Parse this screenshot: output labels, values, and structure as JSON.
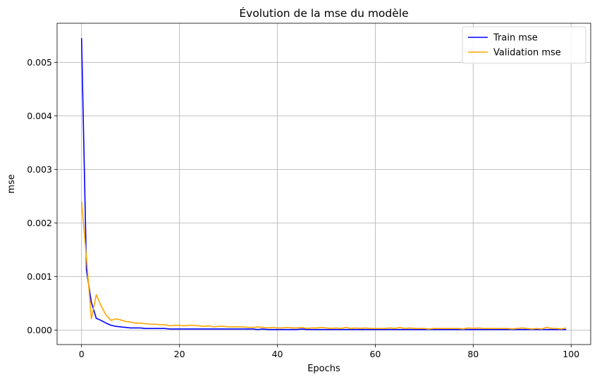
{
  "chart_data": {
    "type": "line",
    "title": "Évolution de la mse du modèle",
    "xlabel": "Epochs",
    "ylabel": "mse",
    "xlim": [
      -5,
      104
    ],
    "ylim": [
      -0.00027,
      0.00573
    ],
    "xticks": [
      0,
      20,
      40,
      60,
      80,
      100
    ],
    "yticks": [
      0.0,
      0.001,
      0.002,
      0.003,
      0.004,
      0.005
    ],
    "ytick_labels": [
      "0.000",
      "0.001",
      "0.002",
      "0.003",
      "0.004",
      "0.005"
    ],
    "xtick_labels": [
      "0",
      "20",
      "40",
      "60",
      "80",
      "100"
    ],
    "grid": true,
    "legend_position": "top-right",
    "series": [
      {
        "name": "Train mse",
        "color": "#0000ff",
        "x": [
          0,
          1,
          2,
          3,
          4,
          5,
          6,
          7,
          8,
          9,
          10,
          11,
          12,
          13,
          14,
          15,
          16,
          17,
          18,
          19,
          20,
          21,
          22,
          23,
          24,
          25,
          26,
          27,
          28,
          29,
          30,
          31,
          32,
          33,
          34,
          35,
          36,
          37,
          38,
          39,
          40,
          41,
          42,
          43,
          44,
          45,
          46,
          47,
          48,
          49,
          50,
          51,
          52,
          53,
          54,
          55,
          56,
          57,
          58,
          59,
          60,
          61,
          62,
          63,
          64,
          65,
          66,
          67,
          68,
          69,
          70,
          71,
          72,
          73,
          74,
          75,
          76,
          77,
          78,
          79,
          80,
          81,
          82,
          83,
          84,
          85,
          86,
          87,
          88,
          89,
          90,
          91,
          92,
          93,
          94,
          95,
          96,
          97,
          98,
          99
        ],
        "values": [
          0.00545,
          0.00112,
          0.00052,
          0.00022,
          0.00018,
          0.00013,
          9e-05,
          7e-05,
          6e-05,
          5e-05,
          4e-05,
          4e-05,
          4e-05,
          3e-05,
          3e-05,
          3e-05,
          3e-05,
          3e-05,
          2e-05,
          2e-05,
          2e-05,
          2e-05,
          2e-05,
          2e-05,
          2e-05,
          2e-05,
          2e-05,
          2e-05,
          2e-05,
          2e-05,
          2e-05,
          2e-05,
          2e-05,
          2e-05,
          2e-05,
          2e-05,
          1e-05,
          2e-05,
          1e-05,
          1e-05,
          1e-05,
          1e-05,
          1e-05,
          1e-05,
          1e-05,
          2e-05,
          1e-05,
          1e-05,
          1e-05,
          1e-05,
          1e-05,
          1e-05,
          1e-05,
          1e-05,
          1e-05,
          1e-05,
          1e-05,
          1e-05,
          1e-05,
          1e-05,
          1e-05,
          1e-05,
          1e-05,
          1e-05,
          1e-05,
          1e-05,
          1e-05,
          1e-05,
          1e-05,
          1e-05,
          1e-05,
          1e-05,
          1e-05,
          1e-05,
          1e-05,
          1e-05,
          1e-05,
          1e-05,
          1e-05,
          1e-05,
          1e-05,
          1e-05,
          1e-05,
          1e-05,
          1e-05,
          1e-05,
          1e-05,
          1e-05,
          1e-05,
          1e-05,
          1e-05,
          1e-05,
          1e-05,
          1e-05,
          1e-05,
          1e-05,
          1e-05,
          1e-05,
          1e-05,
          1e-05
        ]
      },
      {
        "name": "Validation mse",
        "color": "#ffa500",
        "x": [
          0,
          1,
          2,
          3,
          4,
          5,
          6,
          7,
          8,
          9,
          10,
          11,
          12,
          13,
          14,
          15,
          16,
          17,
          18,
          19,
          20,
          21,
          22,
          23,
          24,
          25,
          26,
          27,
          28,
          29,
          30,
          31,
          32,
          33,
          34,
          35,
          36,
          37,
          38,
          39,
          40,
          41,
          42,
          43,
          44,
          45,
          46,
          47,
          48,
          49,
          50,
          51,
          52,
          53,
          54,
          55,
          56,
          57,
          58,
          59,
          60,
          61,
          62,
          63,
          64,
          65,
          66,
          67,
          68,
          69,
          70,
          71,
          72,
          73,
          74,
          75,
          76,
          77,
          78,
          79,
          80,
          81,
          82,
          83,
          84,
          85,
          86,
          87,
          88,
          89,
          90,
          91,
          92,
          93,
          94,
          95,
          96,
          97,
          98,
          99
        ],
        "values": [
          0.0024,
          0.00135,
          0.00021,
          0.00066,
          0.00045,
          0.00028,
          0.00018,
          0.00021,
          0.00019,
          0.00016,
          0.00015,
          0.00013,
          0.00013,
          0.00012,
          0.00011,
          0.00011,
          0.0001,
          0.0001,
          8e-05,
          9e-05,
          9e-05,
          8e-05,
          9e-05,
          9e-05,
          8e-05,
          7e-05,
          8e-05,
          6e-05,
          7e-05,
          7e-05,
          6e-05,
          6e-05,
          6e-05,
          6e-05,
          5e-05,
          5e-05,
          6e-05,
          5e-05,
          4e-05,
          5e-05,
          4e-05,
          4e-05,
          5e-05,
          4e-05,
          4e-05,
          5e-05,
          3e-05,
          4e-05,
          4e-05,
          5e-05,
          4e-05,
          3e-05,
          4e-05,
          3e-05,
          5e-05,
          3e-05,
          4e-05,
          3e-05,
          4e-05,
          3e-05,
          3e-05,
          3e-05,
          3e-05,
          4e-05,
          3e-05,
          5e-05,
          3e-05,
          4e-05,
          3e-05,
          3e-05,
          3e-05,
          2e-05,
          3e-05,
          3e-05,
          3e-05,
          3e-05,
          3e-05,
          3e-05,
          2e-05,
          4e-05,
          3e-05,
          4e-05,
          3e-05,
          3e-05,
          3e-05,
          3e-05,
          3e-05,
          3e-05,
          2e-05,
          3e-05,
          4e-05,
          3e-05,
          2e-05,
          3e-05,
          2e-05,
          5e-05,
          3e-05,
          3e-05,
          2e-05,
          4e-05
        ]
      }
    ]
  }
}
